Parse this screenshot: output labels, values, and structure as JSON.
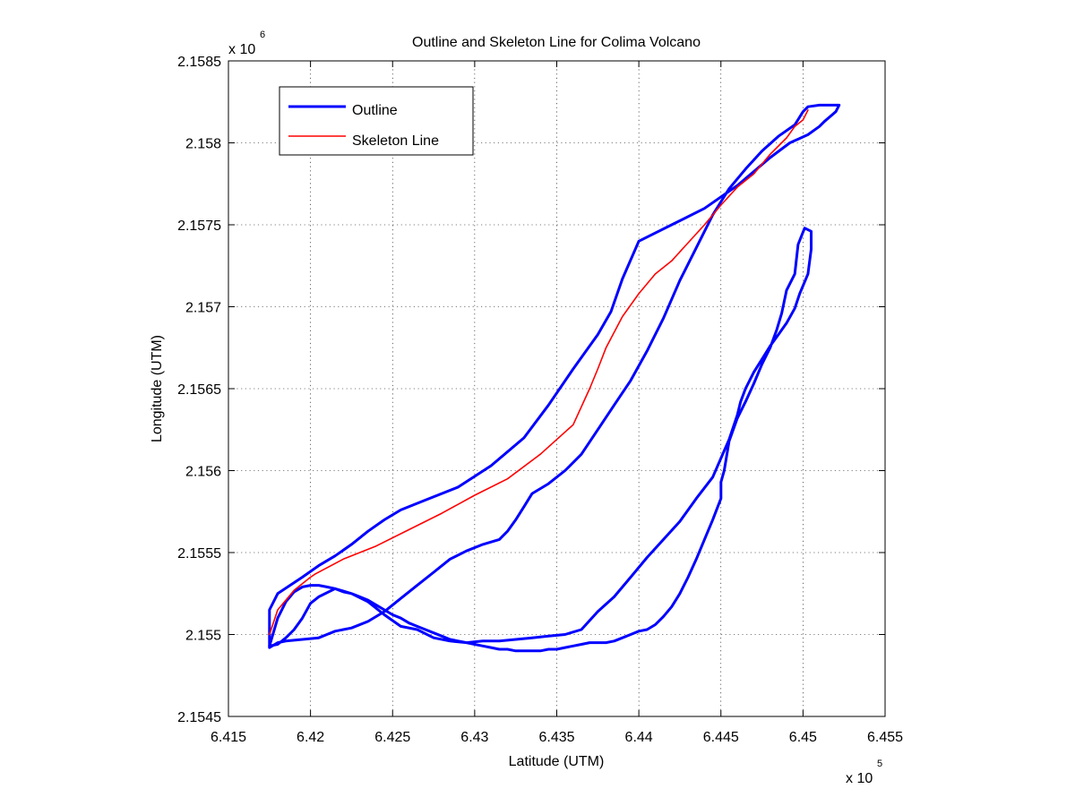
{
  "chart_data": {
    "type": "line",
    "title": "Outline and Skeleton Line for Colima Volcano",
    "xlabel": "Latitude (UTM)",
    "ylabel": "Longitude (UTM)",
    "x_multiplier_label": "x 10",
    "x_multiplier_exp": "5",
    "y_multiplier_label": "x 10",
    "y_multiplier_exp": "6",
    "xlim": [
      641500,
      645500
    ],
    "ylim": [
      2154500,
      2158500
    ],
    "x_ticks": [
      641500,
      642000,
      642500,
      643000,
      643500,
      644000,
      644500,
      645000,
      645500
    ],
    "x_tick_labels": [
      "6.415",
      "6.42",
      "6.425",
      "6.43",
      "6.435",
      "6.44",
      "6.445",
      "6.45",
      "6.455"
    ],
    "y_ticks": [
      2154500,
      2155000,
      2155500,
      2156000,
      2156500,
      2157000,
      2157500,
      2158000,
      2158500
    ],
    "y_tick_labels": [
      "2.1545",
      "2.155",
      "2.1555",
      "2.156",
      "2.1565",
      "2.157",
      "2.1575",
      "2.158",
      "2.1585"
    ],
    "grid": true,
    "legend_position": "top-left",
    "colors": {
      "outline": "#0000ff",
      "skeleton": "#ff0000"
    },
    "series": [
      {
        "name": "Outline",
        "color": "#0000ff",
        "line_width": 3,
        "paths": [
          {
            "x": [
              641750,
              641750,
              641800,
              641950,
              642050,
              642150,
              642250,
              642350,
              642450,
              642550,
              642700,
              642900,
              643100,
              643300,
              643450,
              643600,
              643750,
              643830,
              643900,
              644000,
              644200,
              644400,
              644600,
              644800,
              644920,
              645030,
              645100,
              645130,
              645200,
              645220,
              645100,
              645030,
              645000,
              644950,
              644850,
              644750,
              644650,
              644550,
              644450,
              644350,
              644250,
              644150,
              644050,
              643950,
              643850,
              643750,
              643650,
              643550,
              643450,
              643350,
              643300,
              643250,
              643200,
              643150,
              643050,
              642950,
              642850,
              642750,
              642650,
              642550,
              642450,
              642350,
              642250,
              642150,
              642100,
              642050,
              641950,
              641850,
              641800,
              641750
            ],
            "y": [
              2154920,
              2155150,
              2155250,
              2155350,
              2155420,
              2155480,
              2155550,
              2155630,
              2155700,
              2155760,
              2155820,
              2155900,
              2156030,
              2156200,
              2156400,
              2156620,
              2156830,
              2156970,
              2157170,
              2157400,
              2157500,
              2157600,
              2157740,
              2157910,
              2158000,
              2158050,
              2158100,
              2158130,
              2158190,
              2158230,
              2158230,
              2158220,
              2158190,
              2158110,
              2158040,
              2157950,
              2157840,
              2157720,
              2157560,
              2157360,
              2157160,
              2156930,
              2156730,
              2156550,
              2156400,
              2156250,
              2156100,
              2156000,
              2155920,
              2155860,
              2155780,
              2155700,
              2155630,
              2155580,
              2155550,
              2155510,
              2155460,
              2155380,
              2155300,
              2155220,
              2155140,
              2155080,
              2155040,
              2155020,
              2155000,
              2154980,
              2154970,
              2154960,
              2154950,
              2154920
            ]
          },
          {
            "x": [
              641750,
              641800,
              641850,
              641900,
              641950,
              642000,
              642050,
              642150,
              642250,
              642350,
              642450,
              642550,
              642650,
              642750,
              642850,
              642950,
              643050,
              643150,
              643250,
              643350,
              643450,
              643550,
              643650,
              643750,
              643850,
              643950,
              644050,
              644150,
              644250,
              644350,
              644450,
              644550,
              644600,
              644620,
              644650,
              644700,
              644750,
              644800,
              644850,
              644900,
              644950,
              644980,
              645030,
              645050,
              645050,
              645010,
              644970,
              644950,
              644900,
              644870,
              644840,
              644800,
              644750,
              644700,
              644650,
              644600,
              644550,
              644520,
              644500,
              644500,
              644450,
              644400,
              644350,
              644300,
              644250,
              644200,
              644150,
              644100,
              644050,
              644000,
              643950,
              643900,
              643850,
              643800,
              643750,
              643700,
              643650,
              643600,
              643550,
              643500,
              643450,
              643400,
              643350,
              643300,
              643250,
              643200,
              643150,
              643100,
              643050,
              643000,
              642950,
              642900,
              642850,
              642800,
              642750,
              642700,
              642650,
              642600,
              642550,
              642500,
              642450,
              642400,
              642350,
              642300,
              642250,
              642200,
              642150,
              642100,
              642050,
              642000,
              641950,
              641900,
              641850,
              641800,
              641750
            ],
            "y": [
              2154930,
              2154940,
              2154980,
              2155030,
              2155100,
              2155190,
              2155230,
              2155280,
              2155250,
              2155200,
              2155120,
              2155050,
              2155030,
              2154980,
              2154960,
              2154950,
              2154960,
              2154960,
              2154970,
              2154980,
              2154990,
              2155000,
              2155030,
              2155140,
              2155230,
              2155350,
              2155470,
              2155580,
              2155690,
              2155830,
              2155960,
              2156190,
              2156340,
              2156420,
              2156500,
              2156600,
              2156680,
              2156760,
              2156830,
              2156900,
              2156990,
              2157080,
              2157200,
              2157350,
              2157460,
              2157480,
              2157380,
              2157200,
              2157100,
              2156960,
              2156860,
              2156750,
              2156650,
              2156530,
              2156420,
              2156320,
              2156180,
              2156000,
              2155930,
              2155830,
              2155700,
              2155580,
              2155460,
              2155350,
              2155250,
              2155170,
              2155110,
              2155060,
              2155030,
              2155020,
              2155000,
              2154980,
              2154960,
              2154950,
              2154950,
              2154950,
              2154940,
              2154930,
              2154920,
              2154910,
              2154910,
              2154900,
              2154900,
              2154900,
              2154900,
              2154910,
              2154910,
              2154920,
              2154930,
              2154940,
              2154950,
              2154960,
              2154970,
              2154990,
              2155010,
              2155030,
              2155050,
              2155070,
              2155100,
              2155120,
              2155150,
              2155180,
              2155210,
              2155230,
              2155250,
              2155260,
              2155280,
              2155290,
              2155300,
              2155300,
              2155290,
              2155260,
              2155200,
              2155100,
              2154930
            ]
          }
        ]
      },
      {
        "name": "Skeleton Line",
        "color": "#ff0000",
        "line_width": 1.6,
        "paths": [
          {
            "x": [
              641750,
              641800,
              641900,
              642000,
              642030,
              642200,
              642400,
              642600,
              642800,
              643000,
              643200,
              643400,
              643600,
              643700,
              643750,
              643800,
              643900,
              644000,
              644100,
              644200,
              644300,
              644400,
              644500,
              644600,
              644700,
              644800,
              644900,
              644950,
              645000,
              645030
            ],
            "y": [
              2155000,
              2155150,
              2155270,
              2155350,
              2155370,
              2155460,
              2155540,
              2155640,
              2155740,
              2155850,
              2155950,
              2156100,
              2156280,
              2156500,
              2156620,
              2156750,
              2156940,
              2157080,
              2157200,
              2157280,
              2157390,
              2157500,
              2157620,
              2157730,
              2157810,
              2157930,
              2158030,
              2158100,
              2158140,
              2158200
            ]
          }
        ]
      }
    ]
  }
}
